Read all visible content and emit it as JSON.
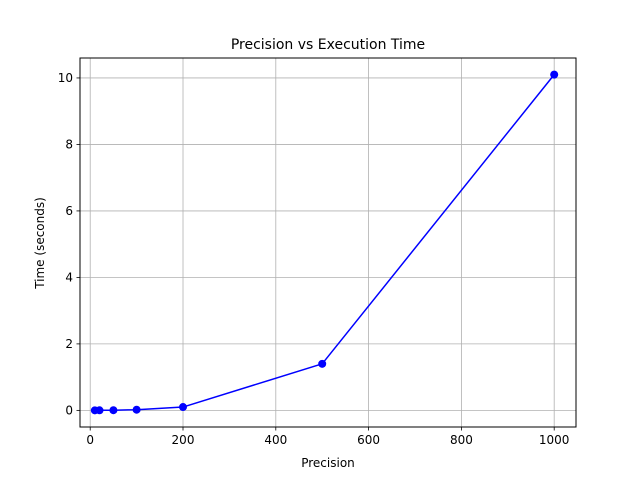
{
  "chart_data": {
    "type": "line",
    "title": "Precision vs Execution Time",
    "xlabel": "Precision",
    "ylabel": "Time (seconds)",
    "xlim": [
      -22,
      1047
    ],
    "ylim": [
      -0.5,
      10.6
    ],
    "xticks": [
      0,
      200,
      400,
      600,
      800,
      1000
    ],
    "yticks": [
      0,
      2,
      4,
      6,
      8,
      10
    ],
    "grid": true,
    "series": [
      {
        "color": "#0000ff",
        "marker": "circle",
        "x": [
          10,
          20,
          50,
          100,
          200,
          500,
          1000
        ],
        "y": [
          0.001,
          0.002,
          0.005,
          0.02,
          0.1,
          1.4,
          10.1
        ]
      }
    ]
  }
}
